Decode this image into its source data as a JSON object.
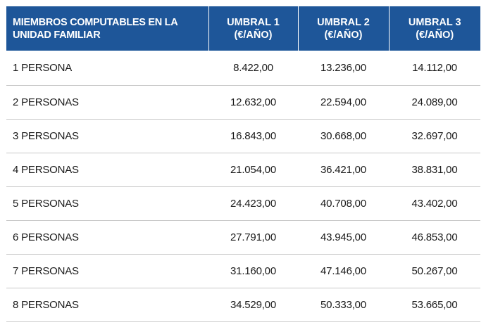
{
  "table": {
    "headers": {
      "members": "MIEMBROS COMPUTABLES EN LA UNIDAD FAMILIAR",
      "thresholds": [
        {
          "name": "UMBRAL 1",
          "unit": "(€/AÑO)"
        },
        {
          "name": "UMBRAL 2",
          "unit": "(€/AÑO)"
        },
        {
          "name": "UMBRAL 3",
          "unit": "(€/AÑO)"
        }
      ]
    },
    "rows": [
      {
        "members": "1 PERSONA",
        "values": [
          "8.422,00",
          "13.236,00",
          "14.112,00"
        ]
      },
      {
        "members": "2 PERSONAS",
        "values": [
          "12.632,00",
          "22.594,00",
          "24.089,00"
        ]
      },
      {
        "members": "3 PERSONAS",
        "values": [
          "16.843,00",
          "30.668,00",
          "32.697,00"
        ]
      },
      {
        "members": "4 PERSONAS",
        "values": [
          "21.054,00",
          "36.421,00",
          "38.831,00"
        ]
      },
      {
        "members": "5 PERSONAS",
        "values": [
          "24.423,00",
          "40.708,00",
          "43.402,00"
        ]
      },
      {
        "members": "6 PERSONAS",
        "values": [
          "27.791,00",
          "43.945,00",
          "46.853,00"
        ]
      },
      {
        "members": "7 PERSONAS",
        "values": [
          "31.160,00",
          "47.146,00",
          "50.267,00"
        ]
      },
      {
        "members": "8 PERSONAS",
        "values": [
          "34.529,00",
          "50.333,00",
          "53.665,00"
        ]
      }
    ]
  },
  "colors": {
    "header_background": "#1e5699",
    "header_text": "#ffffff",
    "row_divider": "#c9c9c9",
    "body_text": "#1a1a1a"
  }
}
